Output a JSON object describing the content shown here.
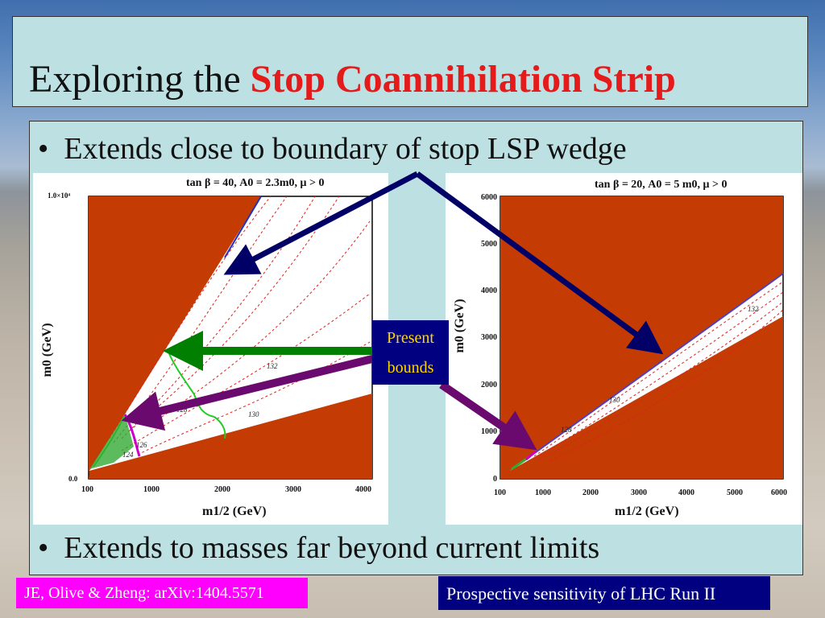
{
  "title": {
    "prefix": "Exploring the ",
    "highlight": "Stop Coannihilation Strip"
  },
  "bullets": [
    {
      "marker": "•",
      "text": "Extends close to boundary of stop LSP wedge"
    },
    {
      "marker": "•",
      "text": "Extends to masses far beyond current limits"
    }
  ],
  "present_bounds": {
    "line1": "Present",
    "line2": "bounds"
  },
  "footer_left": "JE, Olive & Zheng: arXiv:1404.5571",
  "footer_right": "Prospective sensitivity of LHC Run II",
  "colors": {
    "title_highlight": "#e51a1a",
    "excluded_region": "#c43b04",
    "arrow_navy": "#000066",
    "arrow_green": "#007f00",
    "arrow_purple": "#6b0a6e",
    "footer_left_bg": "#ff00ff",
    "footer_right_bg": "#000080"
  },
  "plots": [
    {
      "id": "left",
      "title": "tan β = 40, A0 = 2.3m0, μ > 0",
      "xlabel": "m1/2 (GeV)",
      "ylabel": "m0 (GeV)",
      "x_ticks": [
        "100",
        "1000",
        "2000",
        "3000",
        "4000"
      ],
      "y_ticks": [
        "0.0",
        "1.0×10⁴"
      ],
      "contour_labels": [
        "132",
        "130",
        "128",
        "126",
        "124"
      ]
    },
    {
      "id": "right",
      "title": "tan β = 20, A0 = 5 m0, μ > 0",
      "xlabel": "m1/2 (GeV)",
      "ylabel": "m0 (GeV)",
      "x_ticks": [
        "100",
        "1000",
        "2000",
        "3000",
        "4000",
        "5000",
        "6000"
      ],
      "y_ticks": [
        "0",
        "1000",
        "2000",
        "3000",
        "4000",
        "5000",
        "6000"
      ],
      "contour_labels": [
        "132",
        "130",
        "128"
      ]
    }
  ]
}
